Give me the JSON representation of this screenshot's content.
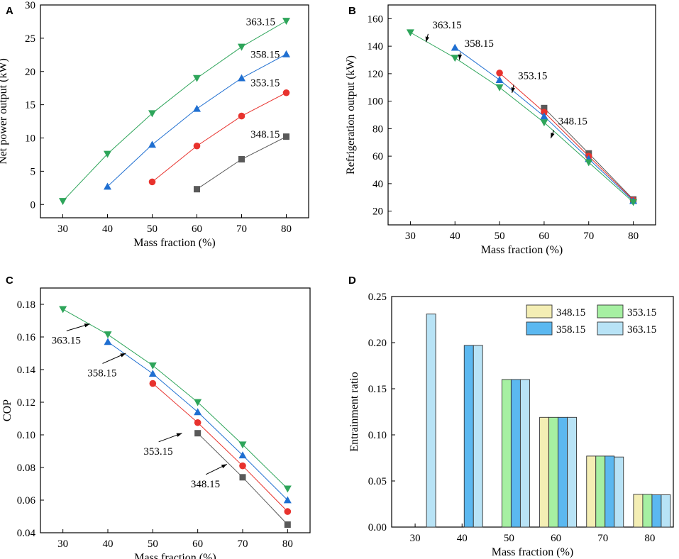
{
  "chart_data": [
    {
      "id": "A",
      "panel_label": "A",
      "type": "line",
      "xlabel": "Mass fraction (%)",
      "ylabel": "Net power output (kW)",
      "xlim": [
        25,
        85
      ],
      "ylim": [
        -2,
        30
      ],
      "xticks": [
        30,
        40,
        50,
        60,
        70,
        80
      ],
      "yticks": [
        0,
        5,
        10,
        15,
        20,
        25,
        30
      ],
      "series": [
        {
          "name": "348.15",
          "color": "#595959",
          "marker": "square",
          "x": [
            60,
            70,
            80
          ],
          "y": [
            2.3,
            6.8,
            10.2
          ]
        },
        {
          "name": "353.15",
          "color": "#e8322d",
          "marker": "circle",
          "x": [
            50,
            60,
            70,
            80
          ],
          "y": [
            3.4,
            8.8,
            13.3,
            16.8
          ]
        },
        {
          "name": "358.15",
          "color": "#1f6fd1",
          "marker": "triangle-up",
          "x": [
            40,
            50,
            60,
            70,
            80
          ],
          "y": [
            2.7,
            9.0,
            14.4,
            19.0,
            22.6
          ]
        },
        {
          "name": "363.15",
          "color": "#2ea55a",
          "marker": "triangle-down",
          "x": [
            30,
            40,
            50,
            60,
            70,
            80
          ],
          "y": [
            0.5,
            7.6,
            13.7,
            19.0,
            23.7,
            27.6
          ]
        }
      ],
      "annotations": [
        {
          "text": "363.15",
          "x": 71,
          "y": 27.5,
          "arrow": false
        },
        {
          "text": "358.15",
          "x": 72,
          "y": 22.6,
          "arrow": false
        },
        {
          "text": "353.15",
          "x": 72,
          "y": 18.3,
          "arrow": false
        },
        {
          "text": "348.15",
          "x": 72,
          "y": 10.6,
          "arrow": false
        }
      ]
    },
    {
      "id": "B",
      "panel_label": "B",
      "type": "line",
      "xlabel": "Mass fraction (%)",
      "ylabel": "Refrigeration output (kW)",
      "xlim": [
        25,
        85
      ],
      "ylim": [
        10,
        170
      ],
      "xticks": [
        30,
        40,
        50,
        60,
        70,
        80
      ],
      "yticks": [
        20,
        40,
        60,
        80,
        100,
        120,
        140,
        160
      ],
      "series": [
        {
          "name": "348.15",
          "color": "#595959",
          "marker": "square",
          "x": [
            60,
            70,
            80
          ],
          "y": [
            95,
            62,
            28.5
          ]
        },
        {
          "name": "353.15",
          "color": "#e8322d",
          "marker": "circle",
          "x": [
            50,
            60,
            70,
            80
          ],
          "y": [
            120.5,
            92,
            60,
            28
          ]
        },
        {
          "name": "358.15",
          "color": "#1f6fd1",
          "marker": "triangle-up",
          "x": [
            40,
            50,
            60,
            70,
            80
          ],
          "y": [
            139,
            115.5,
            89,
            58,
            27.5
          ]
        },
        {
          "name": "363.15",
          "color": "#2ea55a",
          "marker": "triangle-down",
          "x": [
            30,
            40,
            50,
            60,
            70,
            80
          ],
          "y": [
            150,
            131.5,
            110,
            84.5,
            55.5,
            26.5
          ]
        }
      ],
      "annotations": [
        {
          "text": "363.15",
          "x": 34.3,
          "y": 151,
          "arrow": true,
          "tx": 33.5,
          "ty": 143
        },
        {
          "text": "358.15",
          "x": 41.5,
          "y": 137.5,
          "arrow": true,
          "tx": 41,
          "ty": 130
        },
        {
          "text": "353.15",
          "x": 53.5,
          "y": 114,
          "arrow": true,
          "tx": 52.8,
          "ty": 106
        },
        {
          "text": "348.15",
          "x": 62.5,
          "y": 81,
          "arrow": true,
          "tx": 61.5,
          "ty": 73
        }
      ]
    },
    {
      "id": "C",
      "panel_label": "C",
      "type": "line",
      "xlabel": "Mass fraction (%)",
      "ylabel": "COP",
      "xlim": [
        25,
        85
      ],
      "ylim": [
        0.04,
        0.19
      ],
      "xticks": [
        30,
        40,
        50,
        60,
        70,
        80
      ],
      "yticks": [
        0.04,
        0.06,
        0.08,
        0.1,
        0.12,
        0.14,
        0.16,
        0.18
      ],
      "series": [
        {
          "name": "348.15",
          "color": "#595959",
          "marker": "square",
          "x": [
            60,
            70,
            80
          ],
          "y": [
            0.101,
            0.074,
            0.045
          ]
        },
        {
          "name": "353.15",
          "color": "#e8322d",
          "marker": "circle",
          "x": [
            50,
            60,
            70,
            80
          ],
          "y": [
            0.1315,
            0.1075,
            0.081,
            0.053
          ]
        },
        {
          "name": "358.15",
          "color": "#1f6fd1",
          "marker": "triangle-up",
          "x": [
            40,
            50,
            60,
            70,
            80
          ],
          "y": [
            0.157,
            0.1375,
            0.114,
            0.0875,
            0.06
          ]
        },
        {
          "name": "363.15",
          "color": "#2ea55a",
          "marker": "triangle-down",
          "x": [
            30,
            40,
            50,
            60,
            70,
            80
          ],
          "y": [
            0.177,
            0.1615,
            0.1425,
            0.12,
            0.094,
            0.067
          ]
        }
      ],
      "annotations": [
        {
          "text": "363.15",
          "x": 30.5,
          "y": 0.162,
          "arrow": true,
          "tx": 36,
          "ty": 0.168
        },
        {
          "text": "358.15",
          "x": 38.5,
          "y": 0.142,
          "arrow": true,
          "tx": 44,
          "ty": 0.15
        },
        {
          "text": "353.15",
          "x": 51,
          "y": 0.094,
          "arrow": true,
          "tx": 56.5,
          "ty": 0.101
        },
        {
          "text": "348.15",
          "x": 61.5,
          "y": 0.074,
          "arrow": true,
          "tx": 66.5,
          "ty": 0.082
        }
      ]
    },
    {
      "id": "D",
      "panel_label": "D",
      "type": "bar",
      "xlabel": "Mass fraction (%)",
      "ylabel": "Entrainment ratio",
      "ylim": [
        0,
        0.25
      ],
      "yticks": [
        0.0,
        0.05,
        0.1,
        0.15,
        0.2,
        0.25
      ],
      "categories": [
        "30",
        "40",
        "50",
        "60",
        "70",
        "80"
      ],
      "series": [
        {
          "name": "348.15",
          "color": "#f4eeb4",
          "values": [
            null,
            null,
            null,
            0.119,
            0.077,
            0.0355
          ]
        },
        {
          "name": "353.15",
          "color": "#a6f0a2",
          "values": [
            null,
            null,
            0.16,
            0.119,
            0.077,
            0.0355
          ]
        },
        {
          "name": "358.15",
          "color": "#5bb8f0",
          "values": [
            null,
            0.197,
            0.16,
            0.119,
            0.077,
            0.035
          ]
        },
        {
          "name": "363.15",
          "color": "#b8e3f6",
          "values": [
            0.231,
            0.197,
            0.16,
            0.119,
            0.076,
            0.035
          ]
        }
      ],
      "legend_position": "top-right"
    }
  ]
}
